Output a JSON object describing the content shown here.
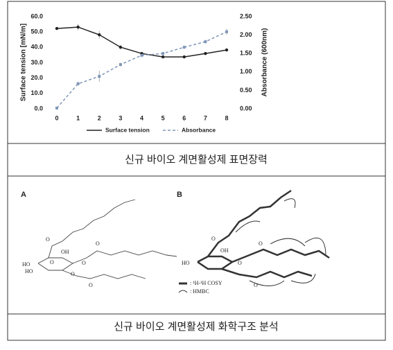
{
  "chart_data": {
    "type": "line",
    "x": [
      0,
      1,
      2,
      3,
      4,
      5,
      6,
      7,
      8
    ],
    "xlim": [
      0,
      8
    ],
    "xticks": [
      0,
      1,
      2,
      3,
      4,
      5,
      6,
      7,
      8
    ],
    "ylabel": "Surface tension [mN/m]",
    "y2label": "Absorbance (600nm)",
    "ylim": [
      0,
      60
    ],
    "yticks": [
      {
        "value": 0,
        "label": "0.0"
      },
      {
        "value": 10,
        "label": "10.0"
      },
      {
        "value": 20,
        "label": "20.0"
      },
      {
        "value": 30,
        "label": "30.0"
      },
      {
        "value": 40,
        "label": "40.0"
      },
      {
        "value": 50,
        "label": "50.0"
      },
      {
        "value": 60,
        "label": "60.0"
      }
    ],
    "y2lim": [
      0,
      2.5
    ],
    "y2ticks": [
      {
        "value": 0,
        "label": "0.00"
      },
      {
        "value": 0.5,
        "label": "0.50"
      },
      {
        "value": 1,
        "label": "1.00"
      },
      {
        "value": 1.5,
        "label": "1.50"
      },
      {
        "value": 2,
        "label": "2.00"
      },
      {
        "value": 2.5,
        "label": "2.50"
      }
    ],
    "grid": false,
    "legend": "bottom",
    "series": [
      {
        "name": "Surface tension",
        "color": "#222222",
        "axis": "y",
        "values": [
          52.3,
          53.2,
          48.2,
          40.1,
          36.0,
          33.8,
          33.8,
          36.0,
          38.3
        ],
        "errors": [
          0.5,
          2.0,
          2.5,
          1.5,
          1.0,
          0.5,
          0.5,
          0.5,
          0.5
        ]
      },
      {
        "name": "Absorbance",
        "color": "#7f96b8",
        "axis": "y2",
        "values": [
          0.02,
          0.68,
          0.88,
          1.2,
          1.45,
          1.5,
          1.67,
          1.82,
          2.09
        ],
        "errors": [
          0.0,
          0.05,
          0.15,
          0.05,
          0.03,
          0.03,
          0.03,
          0.05,
          0.08
        ]
      }
    ]
  },
  "captions": [
    "신규 바이오 계면활성제 표면장력",
    "신규 바이오 계면활성제 화학구조 분석"
  ],
  "structure": {
    "panel_a": "A",
    "panel_b": "B",
    "labels_a": [
      "HO",
      "HO",
      "OH",
      "O",
      "O",
      "O",
      "O",
      "O",
      "O"
    ],
    "labels_b": [
      "HO",
      "OH",
      "O",
      "O",
      "O",
      "O"
    ],
    "legend": [
      ": ¹H-¹H COSY",
      ": HMBC"
    ]
  }
}
